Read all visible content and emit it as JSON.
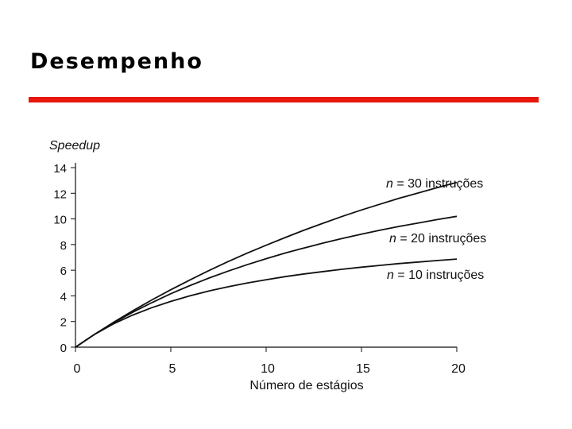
{
  "slide": {
    "title": "Desempenho",
    "accent_color": "#e8160c"
  },
  "chart_data": {
    "type": "line",
    "title": "",
    "ylabel": "Speedup",
    "xlabel": "Número de estágios",
    "xlim": [
      0,
      20
    ],
    "ylim": [
      0,
      14
    ],
    "xticks": [
      0,
      5,
      10,
      15,
      20
    ],
    "yticks": [
      0,
      2,
      4,
      6,
      8,
      10,
      12,
      14
    ],
    "grid": false,
    "x": [
      0,
      1,
      2,
      3,
      4,
      5,
      6,
      7,
      8,
      9,
      10,
      11,
      12,
      13,
      14,
      15,
      16,
      17,
      18,
      19,
      20
    ],
    "series": [
      {
        "name_prefix": "n =",
        "name_count": "30",
        "name_suffix": "instruções",
        "values": [
          0,
          1.0,
          1.94,
          2.83,
          3.68,
          4.48,
          5.24,
          5.97,
          6.67,
          7.33,
          7.95,
          8.55,
          9.13,
          9.67,
          10.2,
          10.7,
          11.16,
          11.62,
          12.03,
          12.45,
          12.85
        ]
      },
      {
        "name_prefix": "n =",
        "name_count": "20",
        "name_suffix": "instruções",
        "values": [
          0,
          1.0,
          1.9,
          2.72,
          3.47,
          4.17,
          4.8,
          5.39,
          5.93,
          6.43,
          6.9,
          7.34,
          7.74,
          8.12,
          8.48,
          8.81,
          9.13,
          9.42,
          9.69,
          9.96,
          10.2
        ]
      },
      {
        "name_prefix": "n =",
        "name_count": "10",
        "name_suffix": "instruções",
        "values": [
          0,
          1.0,
          1.82,
          2.5,
          3.08,
          3.57,
          4.0,
          4.38,
          4.71,
          5.0,
          5.26,
          5.5,
          5.71,
          5.9,
          6.08,
          6.24,
          6.38,
          6.52,
          6.64,
          6.76,
          6.87
        ]
      }
    ]
  }
}
